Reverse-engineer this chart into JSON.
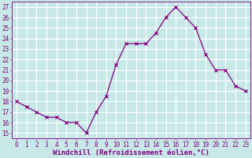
{
  "x": [
    0,
    1,
    2,
    3,
    4,
    5,
    6,
    7,
    8,
    9,
    10,
    11,
    12,
    13,
    14,
    15,
    16,
    17,
    18,
    19,
    20,
    21,
    22,
    23
  ],
  "y": [
    18,
    17.5,
    17,
    16.5,
    16.5,
    16,
    16,
    15,
    17,
    18.5,
    21.5,
    23.5,
    23.5,
    23.5,
    24.5,
    26,
    27,
    26,
    25,
    22.5,
    21,
    21,
    19.5,
    19
  ],
  "line_color": "#800080",
  "marker_color": "#800080",
  "bg_color": "#c8e8e8",
  "grid_color": "#ffffff",
  "xlabel": "Windchill (Refroidissement éolien,°C)",
  "xlabel_color": "#800080",
  "ylabel_ticks": [
    15,
    16,
    17,
    18,
    19,
    20,
    21,
    22,
    23,
    24,
    25,
    26,
    27
  ],
  "xlim": [
    -0.5,
    23.5
  ],
  "ylim": [
    14.5,
    27.5
  ],
  "xtick_labels": [
    "0",
    "1",
    "2",
    "3",
    "4",
    "5",
    "6",
    "7",
    "8",
    "9",
    "10",
    "11",
    "12",
    "13",
    "14",
    "15",
    "16",
    "17",
    "18",
    "19",
    "20",
    "21",
    "22",
    "23"
  ],
  "tick_color": "#800080",
  "font_color": "#800080",
  "title_fontsize": 5.5,
  "xlabel_fontsize": 6.5,
  "tick_fontsize": 5.5
}
